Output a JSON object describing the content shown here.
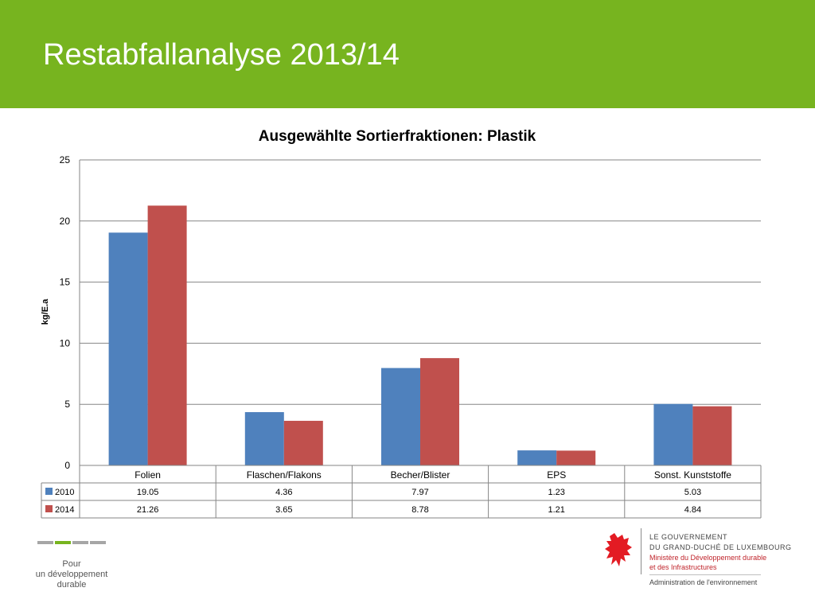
{
  "slide": {
    "title": "Restabfallanalyse 2013/14"
  },
  "chart_data": {
    "type": "bar",
    "title": "Ausgewählte Sortierfraktionen: Plastik",
    "ylabel": "kg/E.a",
    "xlabel": "",
    "ylim": [
      0,
      25
    ],
    "yticks": [
      0,
      5,
      10,
      15,
      20,
      25
    ],
    "grid": true,
    "legend": "data-table",
    "categories": [
      "Folien",
      "Flaschen/Flakons",
      "Becher/Blister",
      "EPS",
      "Sonst. Kunststoffe"
    ],
    "series": [
      {
        "name": "2010",
        "color": "#4f81bd",
        "values": [
          19.05,
          4.36,
          7.97,
          1.23,
          5.03
        ]
      },
      {
        "name": "2014",
        "color": "#c0504d",
        "values": [
          21.26,
          3.65,
          8.78,
          1.21,
          4.84
        ]
      }
    ]
  },
  "footer": {
    "dev_lines": [
      "Pour",
      "un développement",
      "durable"
    ],
    "dash_colors": [
      "#a6a6a6",
      "#77b41f",
      "#a6a6a6",
      "#a6a6a6"
    ],
    "gov_line1": "LE GOUVERNEMENT",
    "gov_line2": "DU GRAND-DUCHÉ DE LUXEMBOURG",
    "ministry_line1": "Ministère du Développement durable",
    "ministry_line2": "et des Infrastructures",
    "administration": "Administration de l'environnement",
    "lion_color": "#e31b23",
    "icon": "lion-icon"
  }
}
